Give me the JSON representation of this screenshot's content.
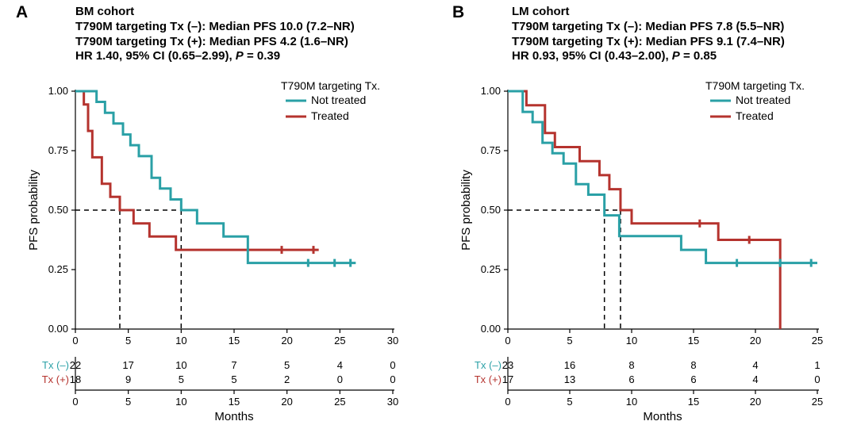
{
  "colors": {
    "not_treated": "#2aa0a6",
    "treated": "#b5332e",
    "axis": "#000000",
    "bg": "#ffffff"
  },
  "typography": {
    "panel_letter_fontsize": 21,
    "header_fontsize": 15,
    "tick_fontsize": 13,
    "axis_title_fontsize": 15,
    "legend_fontsize": 14
  },
  "panelA": {
    "letter": "A",
    "header_lines": [
      "BM cohort",
      "T790M targeting Tx (–): Median PFS 10.0 (7.2–NR)",
      "T790M targeting Tx (+): Median PFS 4.2 (1.6–NR)",
      "HR 1.40, 95% CI (0.65–2.99), P = 0.39"
    ],
    "chart_type": "kaplan_meier",
    "xlim": [
      0,
      30
    ],
    "ylim": [
      0,
      1
    ],
    "xticks": [
      0,
      5,
      10,
      15,
      20,
      25,
      30
    ],
    "yticks": [
      0.0,
      0.25,
      0.5,
      0.75,
      1.0
    ],
    "xlabel": "Months",
    "ylabel": "PFS probability",
    "legend_title": "T790M targeting Tx.",
    "legend_items": [
      {
        "label": "Not treated",
        "color_key": "not_treated"
      },
      {
        "label": "Treated",
        "color_key": "treated"
      }
    ],
    "median_markers": [
      4.2,
      10.0
    ],
    "series": {
      "not_treated": {
        "line_width": 3,
        "step_points": [
          [
            0,
            1.0
          ],
          [
            2.0,
            0.955
          ],
          [
            2.8,
            0.909
          ],
          [
            3.6,
            0.864
          ],
          [
            4.5,
            0.818
          ],
          [
            5.2,
            0.773
          ],
          [
            6.0,
            0.727
          ],
          [
            7.2,
            0.636
          ],
          [
            8.0,
            0.591
          ],
          [
            9.0,
            0.545
          ],
          [
            10.0,
            0.5
          ],
          [
            11.5,
            0.444
          ],
          [
            14.0,
            0.389
          ],
          [
            16.3,
            0.278
          ],
          [
            26.5,
            0.278
          ]
        ],
        "censor_x": [
          22.0,
          24.5,
          26.0
        ]
      },
      "treated": {
        "line_width": 3,
        "step_points": [
          [
            0,
            1.0
          ],
          [
            0.8,
            0.944
          ],
          [
            1.2,
            0.833
          ],
          [
            1.6,
            0.722
          ],
          [
            2.5,
            0.611
          ],
          [
            3.3,
            0.556
          ],
          [
            4.2,
            0.5
          ],
          [
            5.5,
            0.444
          ],
          [
            7.0,
            0.389
          ],
          [
            9.5,
            0.333
          ],
          [
            23.0,
            0.333
          ]
        ],
        "censor_x": [
          19.5,
          22.5
        ]
      }
    },
    "risk_table": {
      "xticks": [
        0,
        5,
        10,
        15,
        20,
        25,
        30
      ],
      "rows": [
        {
          "label": "Tx (–)",
          "color_key": "not_treated",
          "counts": [
            22,
            17,
            10,
            7,
            5,
            4,
            0
          ]
        },
        {
          "label": "Tx (+)",
          "color_key": "treated",
          "counts": [
            18,
            9,
            5,
            5,
            2,
            0,
            0
          ]
        }
      ]
    }
  },
  "panelB": {
    "letter": "B",
    "header_lines": [
      "LM cohort",
      "T790M targeting Tx (–): Median PFS 7.8 (5.5–NR)",
      "T790M targeting Tx (+): Median PFS 9.1 (7.4–NR)",
      "HR 0.93, 95% CI (0.43–2.00), P = 0.85"
    ],
    "chart_type": "kaplan_meier",
    "xlim": [
      0,
      25
    ],
    "ylim": [
      0,
      1
    ],
    "xticks": [
      0,
      5,
      10,
      15,
      20,
      25
    ],
    "yticks": [
      0.0,
      0.25,
      0.5,
      0.75,
      1.0
    ],
    "xlabel": "Months",
    "ylabel": "PFS probability",
    "legend_title": "T790M targeting Tx.",
    "legend_items": [
      {
        "label": "Not treated",
        "color_key": "not_treated"
      },
      {
        "label": "Treated",
        "color_key": "treated"
      }
    ],
    "median_markers": [
      7.8,
      9.1
    ],
    "series": {
      "not_treated": {
        "line_width": 3,
        "step_points": [
          [
            0,
            1.0
          ],
          [
            1.2,
            0.913
          ],
          [
            2.0,
            0.87
          ],
          [
            2.8,
            0.783
          ],
          [
            3.6,
            0.739
          ],
          [
            4.5,
            0.696
          ],
          [
            5.5,
            0.609
          ],
          [
            6.5,
            0.565
          ],
          [
            7.8,
            0.478
          ],
          [
            9.0,
            0.391
          ],
          [
            14.0,
            0.333
          ],
          [
            16.0,
            0.278
          ],
          [
            25.0,
            0.278
          ]
        ],
        "censor_x": [
          18.5,
          22.0,
          24.5
        ]
      },
      "treated": {
        "line_width": 3,
        "step_points": [
          [
            0,
            1.0
          ],
          [
            1.5,
            0.941
          ],
          [
            3.0,
            0.824
          ],
          [
            3.8,
            0.765
          ],
          [
            5.8,
            0.706
          ],
          [
            7.4,
            0.647
          ],
          [
            8.2,
            0.588
          ],
          [
            9.1,
            0.5
          ],
          [
            10.0,
            0.444
          ],
          [
            17.0,
            0.375
          ],
          [
            21.5,
            0.375
          ],
          [
            22.0,
            0.0
          ]
        ],
        "censor_x": [
          15.5,
          19.5
        ]
      }
    },
    "risk_table": {
      "xticks": [
        0,
        5,
        10,
        15,
        20,
        25
      ],
      "rows": [
        {
          "label": "Tx (–)",
          "color_key": "not_treated",
          "counts": [
            23,
            16,
            8,
            8,
            4,
            1
          ]
        },
        {
          "label": "Tx (+)",
          "color_key": "treated",
          "counts": [
            17,
            13,
            6,
            6,
            4,
            0
          ]
        }
      ]
    }
  }
}
